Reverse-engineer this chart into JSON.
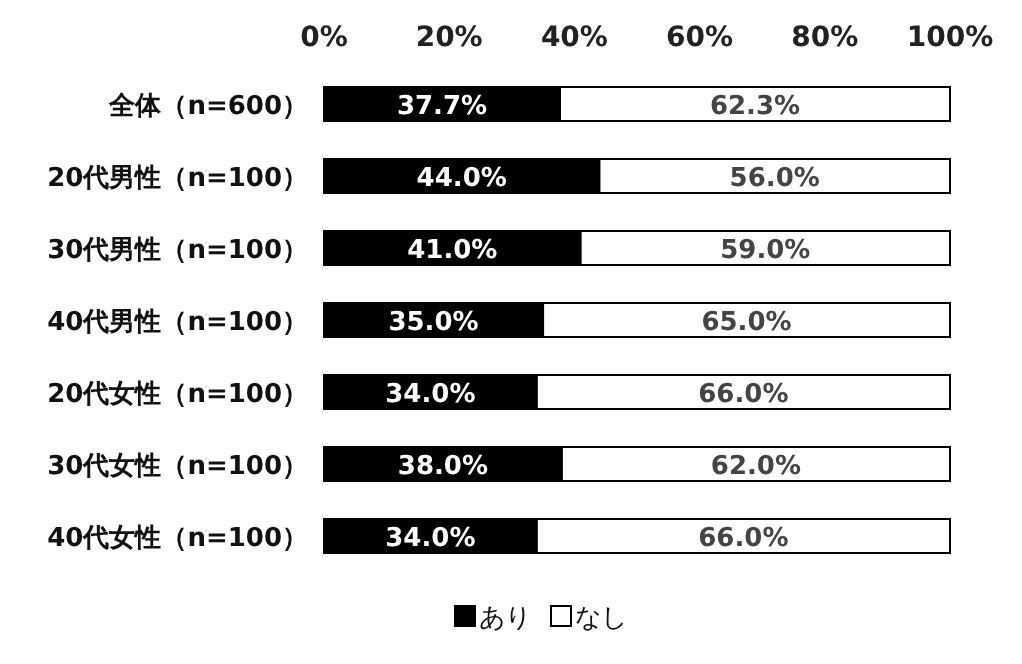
{
  "chart_data": {
    "type": "bar",
    "orientation": "horizontal",
    "stacked": true,
    "categories": [
      "全体（n=600）",
      "20代男性（n=100）",
      "30代男性（n=100）",
      "40代男性（n=100）",
      "20代女性（n=100）",
      "30代女性（n=100）",
      "40代女性（n=100）"
    ],
    "series": [
      {
        "name": "あり",
        "color": "#000000",
        "values": [
          37.7,
          44.0,
          41.0,
          35.0,
          34.0,
          38.0,
          34.0
        ],
        "value_labels": [
          "37.7%",
          "44.0%",
          "41.0%",
          "35.0%",
          "34.0%",
          "38.0%",
          "34.0%"
        ]
      },
      {
        "name": "なし",
        "color": "#ffffff",
        "values": [
          62.3,
          56.0,
          59.0,
          65.0,
          66.0,
          62.0,
          66.0
        ],
        "value_labels": [
          "62.3%",
          "56.0%",
          "59.0%",
          "65.0%",
          "66.0%",
          "62.0%",
          "66.0%"
        ]
      }
    ],
    "xlim": [
      0,
      100
    ],
    "xticks": [
      {
        "value": 0,
        "label": "0%"
      },
      {
        "value": 20,
        "label": "20%"
      },
      {
        "value": 40,
        "label": "40%"
      },
      {
        "value": 60,
        "label": "60%"
      },
      {
        "value": 80,
        "label": "80%"
      },
      {
        "value": 100,
        "label": "100%"
      }
    ],
    "legend": "bottom"
  }
}
